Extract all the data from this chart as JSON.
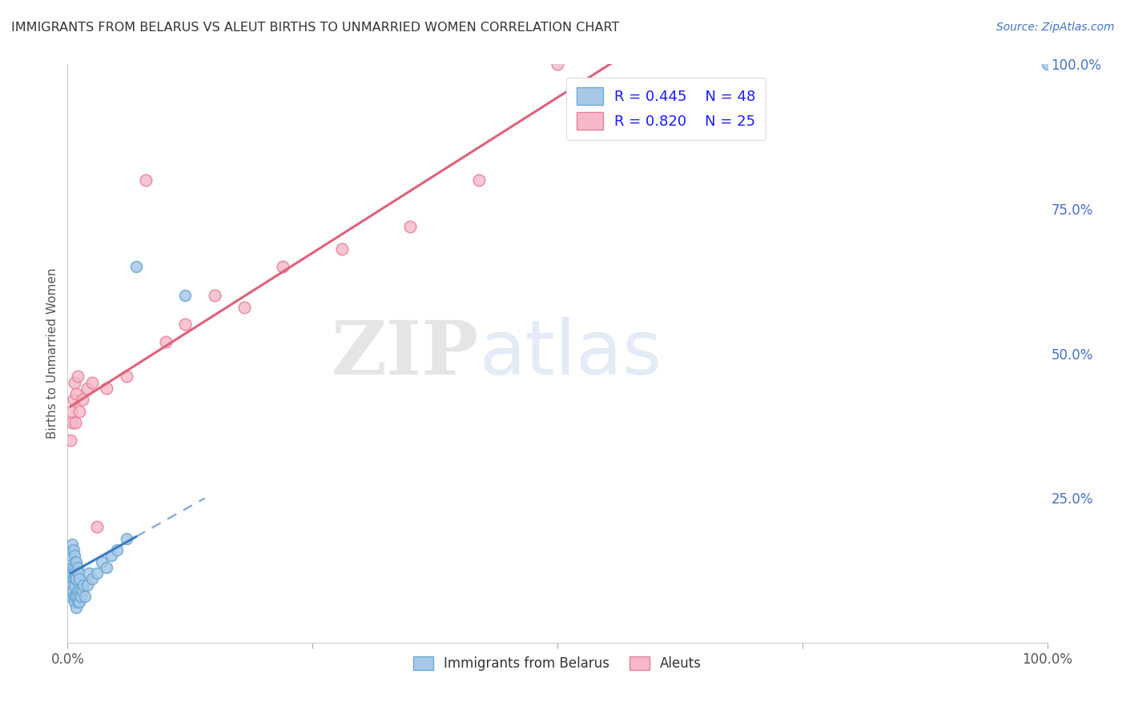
{
  "title": "IMMIGRANTS FROM BELARUS VS ALEUT BIRTHS TO UNMARRIED WOMEN CORRELATION CHART",
  "source": "Source: ZipAtlas.com",
  "ylabel": "Births to Unmarried Women",
  "legend_r1": "R = 0.445",
  "legend_n1": "N = 48",
  "legend_r2": "R = 0.820",
  "legend_n2": "N = 25",
  "blue_scatter_color": "#a8c8e8",
  "blue_edge_color": "#6aaad4",
  "pink_scatter_color": "#f5b8c8",
  "pink_edge_color": "#e8809a",
  "blue_line_color": "#3a7abf",
  "pink_line_color": "#e0607a",
  "title_color": "#333333",
  "source_color": "#4472c4",
  "right_tick_color": "#4472c4",
  "watermark_color": "#d0dff0",
  "background_color": "#ffffff",
  "grid_color": "#c8c8c8",
  "blue_scatter_x": [
    0.002,
    0.003,
    0.003,
    0.004,
    0.004,
    0.004,
    0.005,
    0.005,
    0.005,
    0.006,
    0.006,
    0.006,
    0.006,
    0.007,
    0.007,
    0.007,
    0.007,
    0.008,
    0.008,
    0.008,
    0.009,
    0.009,
    0.009,
    0.009,
    0.01,
    0.01,
    0.01,
    0.011,
    0.011,
    0.012,
    0.012,
    0.013,
    0.014,
    0.015,
    0.016,
    0.018,
    0.02,
    0.022,
    0.025,
    0.03,
    0.035,
    0.04,
    0.045,
    0.05,
    0.06,
    0.07,
    0.12,
    1.0
  ],
  "blue_scatter_y": [
    0.08,
    0.12,
    0.15,
    0.1,
    0.13,
    0.16,
    0.09,
    0.12,
    0.17,
    0.08,
    0.11,
    0.13,
    0.16,
    0.07,
    0.1,
    0.12,
    0.15,
    0.08,
    0.11,
    0.14,
    0.06,
    0.08,
    0.11,
    0.14,
    0.07,
    0.09,
    0.13,
    0.08,
    0.12,
    0.07,
    0.11,
    0.09,
    0.08,
    0.09,
    0.1,
    0.08,
    0.1,
    0.12,
    0.11,
    0.12,
    0.14,
    0.13,
    0.15,
    0.16,
    0.18,
    0.65,
    0.6,
    1.0
  ],
  "pink_scatter_x": [
    0.003,
    0.004,
    0.005,
    0.006,
    0.007,
    0.008,
    0.009,
    0.01,
    0.012,
    0.015,
    0.02,
    0.025,
    0.03,
    0.04,
    0.06,
    0.08,
    0.1,
    0.12,
    0.15,
    0.18,
    0.22,
    0.28,
    0.35,
    0.42,
    0.5
  ],
  "pink_scatter_y": [
    0.35,
    0.4,
    0.38,
    0.42,
    0.45,
    0.38,
    0.43,
    0.46,
    0.4,
    0.42,
    0.44,
    0.45,
    0.2,
    0.44,
    0.46,
    0.8,
    0.52,
    0.55,
    0.6,
    0.58,
    0.65,
    0.68,
    0.72,
    0.8,
    1.0
  ],
  "xlim": [
    0.0,
    1.0
  ],
  "ylim": [
    0.0,
    1.0
  ],
  "x_ticks": [
    0.0,
    0.25,
    0.5,
    0.75,
    1.0
  ],
  "x_tick_labels": [
    "0.0%",
    "",
    "",
    "",
    "100.0%"
  ],
  "y_ticks_right": [
    0.25,
    0.5,
    0.75,
    1.0
  ],
  "y_tick_right_labels": [
    "25.0%",
    "50.0%",
    "75.0%",
    "100.0%"
  ],
  "blue_trend_x0": 0.003,
  "blue_trend_x1": 0.07,
  "pink_trend_x0": 0.003,
  "pink_trend_x1": 1.0
}
